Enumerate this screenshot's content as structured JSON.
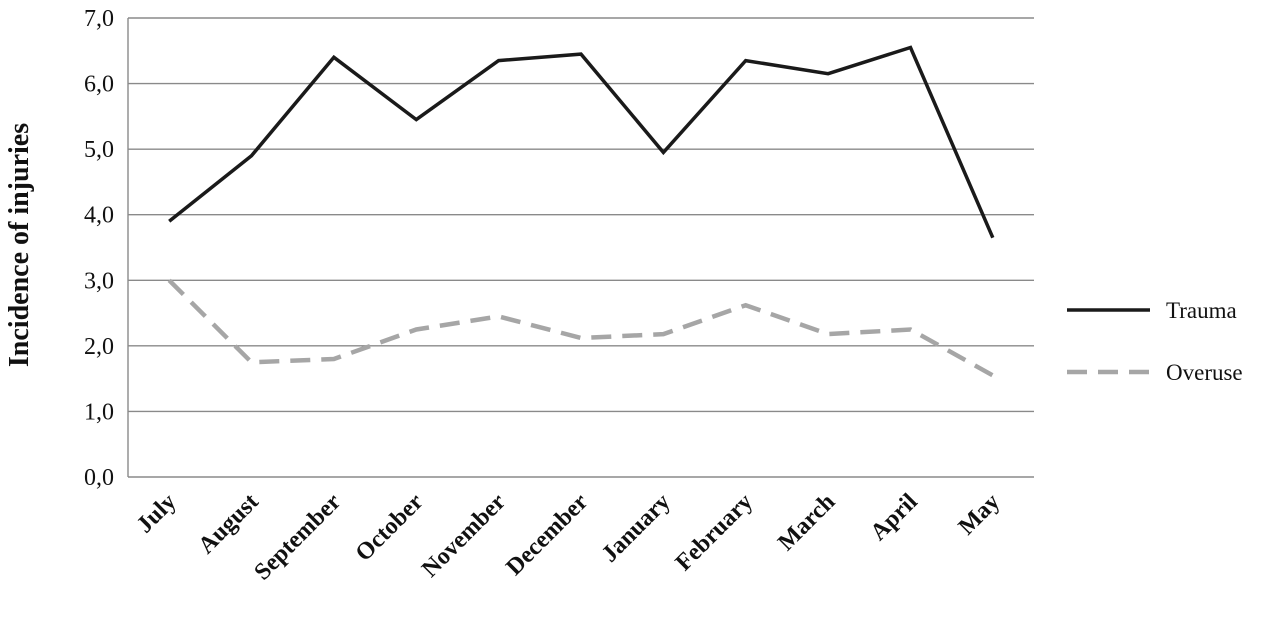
{
  "chart_data": {
    "type": "line",
    "title": "",
    "xlabel": "",
    "ylabel": "Incidence of injuries",
    "ylim": [
      0,
      7
    ],
    "yticks": [
      "0,0",
      "1,0",
      "2,0",
      "3,0",
      "4,0",
      "5,0",
      "6,0",
      "7,0"
    ],
    "categories": [
      "July",
      "August",
      "September",
      "October",
      "November",
      "December",
      "January",
      "February",
      "March",
      "April",
      "May"
    ],
    "grid": true,
    "legend_position": "right",
    "series": [
      {
        "name": "Trauma",
        "color": "#1a1a1a",
        "style": "solid",
        "values": [
          3.9,
          4.9,
          6.4,
          5.45,
          6.35,
          6.45,
          4.95,
          6.35,
          6.15,
          6.55,
          3.65
        ]
      },
      {
        "name": "Overuse",
        "color": "#a6a6a6",
        "style": "dashed",
        "values": [
          3.0,
          1.75,
          1.8,
          2.25,
          2.45,
          2.12,
          2.18,
          2.62,
          2.18,
          2.25,
          1.55
        ]
      }
    ]
  }
}
